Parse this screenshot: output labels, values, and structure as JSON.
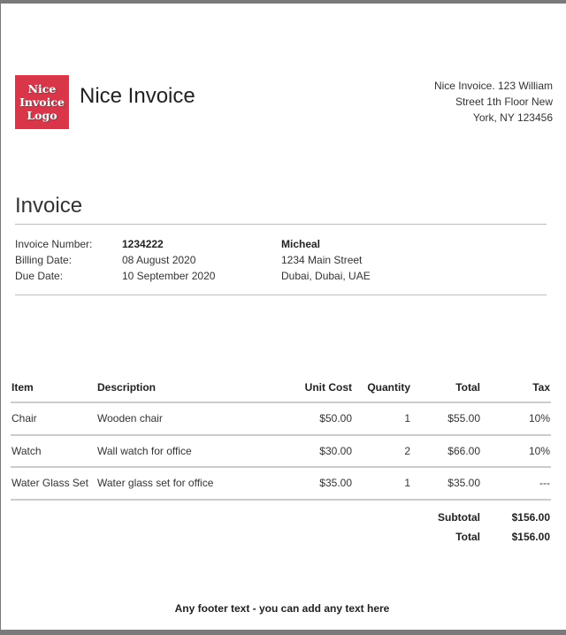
{
  "header": {
    "logo_text": [
      "Nice",
      "Invoice",
      "Logo"
    ],
    "brand": "Nice Invoice",
    "address": [
      "Nice Invoice. 123 William",
      "Street 1th Floor New",
      "York, NY 123456"
    ]
  },
  "invoice": {
    "title": "Invoice",
    "labels": [
      "Invoice Number:",
      "Billing Date:",
      "Due Date:"
    ],
    "values": [
      "1234222",
      "08 August 2020",
      "10 September 2020"
    ],
    "customer": [
      "Micheal",
      "1234 Main Street",
      "Dubai, Dubai, UAE"
    ]
  },
  "table": {
    "headers": [
      "Item",
      "Description",
      "Unit Cost",
      "Quantity",
      "Total",
      "Tax"
    ],
    "rows": [
      [
        "Chair",
        "Wooden chair",
        "$50.00",
        "1",
        "$55.00",
        "10%"
      ],
      [
        "Watch",
        "Wall watch for office",
        "$30.00",
        "2",
        "$66.00",
        "10%"
      ],
      [
        "Water Glass Set",
        "Water glass set for office",
        "$35.00",
        "1",
        "$35.00",
        "---"
      ]
    ],
    "subtotal_label": "Subtotal",
    "subtotal": "$156.00",
    "total_label": "Total",
    "total": "$156.00"
  },
  "footer": "Any footer text - you can add any text here"
}
